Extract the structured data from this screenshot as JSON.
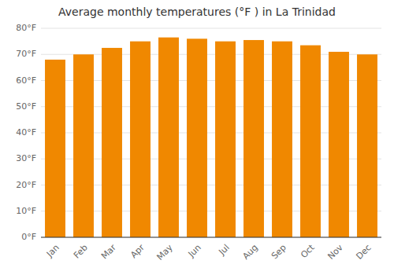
{
  "chart_data": {
    "type": "bar",
    "title": "Average monthly temperatures (°F ) in La Trinidad",
    "categories": [
      "Jan",
      "Feb",
      "Mar",
      "Apr",
      "May",
      "Jun",
      "Jul",
      "Aug",
      "Sep",
      "Oct",
      "Nov",
      "Dec"
    ],
    "values": [
      68,
      70,
      72.5,
      75,
      76.5,
      76,
      75,
      75.5,
      75,
      73.5,
      71,
      70
    ],
    "color": "#F08800",
    "ylim": [
      0,
      80
    ],
    "yticks": [
      {
        "value": 0,
        "label": "0°F"
      },
      {
        "value": 10,
        "label": "10°F"
      },
      {
        "value": 20,
        "label": "20°F"
      },
      {
        "value": 30,
        "label": "30°F"
      },
      {
        "value": 40,
        "label": "40°F"
      },
      {
        "value": 50,
        "label": "50°F"
      },
      {
        "value": 60,
        "label": "60°F"
      },
      {
        "value": 70,
        "label": "70°F"
      },
      {
        "value": 80,
        "label": "80°F"
      }
    ],
    "grid": true
  }
}
